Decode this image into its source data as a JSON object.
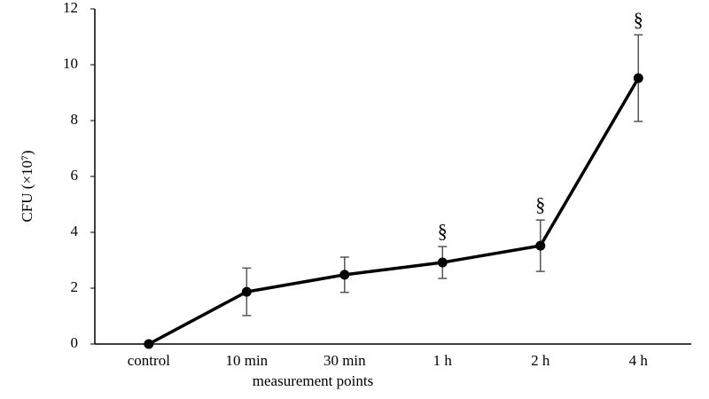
{
  "chart_data": {
    "type": "line",
    "x_label": "measurement points",
    "y_label": "CFU (×10⁷)",
    "categories": [
      "control",
      "10 min",
      "30 min",
      "1 h",
      "2 h",
      "4 h"
    ],
    "series": [
      {
        "color": "#000000",
        "values": [
          0,
          1.87,
          2.48,
          2.92,
          3.52,
          9.52
        ],
        "errors": [
          0,
          0.85,
          0.63,
          0.57,
          0.92,
          1.55
        ]
      }
    ],
    "annotations": [
      {
        "x": "1 h",
        "text": "§"
      },
      {
        "x": "2 h",
        "text": "§"
      },
      {
        "x": "4 h",
        "text": "§"
      }
    ],
    "ylim": [
      0,
      12
    ],
    "yticks": [
      0,
      2,
      4,
      6,
      8,
      10,
      12
    ],
    "grid": false
  }
}
